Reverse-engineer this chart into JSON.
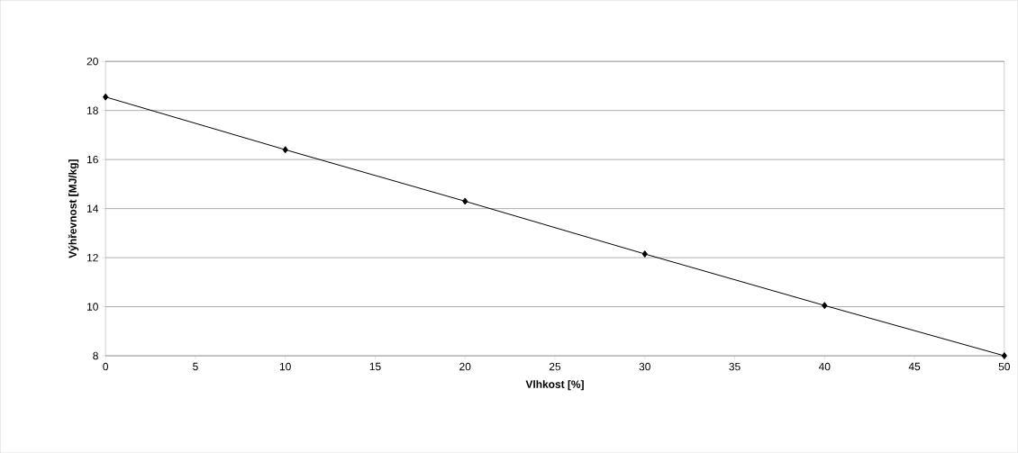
{
  "chart_data": {
    "type": "line",
    "xlabel": "Vlhkost [%]",
    "ylabel": "Výhřevnost [MJ/kg]",
    "x": [
      0,
      10,
      20,
      30,
      40,
      50
    ],
    "series": [
      {
        "color": "#000000",
        "values": [
          18.55,
          16.4,
          14.3,
          12.15,
          10.05,
          8.0
        ]
      }
    ],
    "xlim": [
      0,
      50
    ],
    "xticks": [
      0,
      5,
      10,
      15,
      20,
      25,
      30,
      35,
      40,
      45,
      50
    ],
    "ylim": [
      8,
      20
    ],
    "yticks": [
      8,
      10,
      12,
      14,
      16,
      18,
      20
    ],
    "grid": "y",
    "marker": "diamond",
    "line_style": "solid"
  }
}
